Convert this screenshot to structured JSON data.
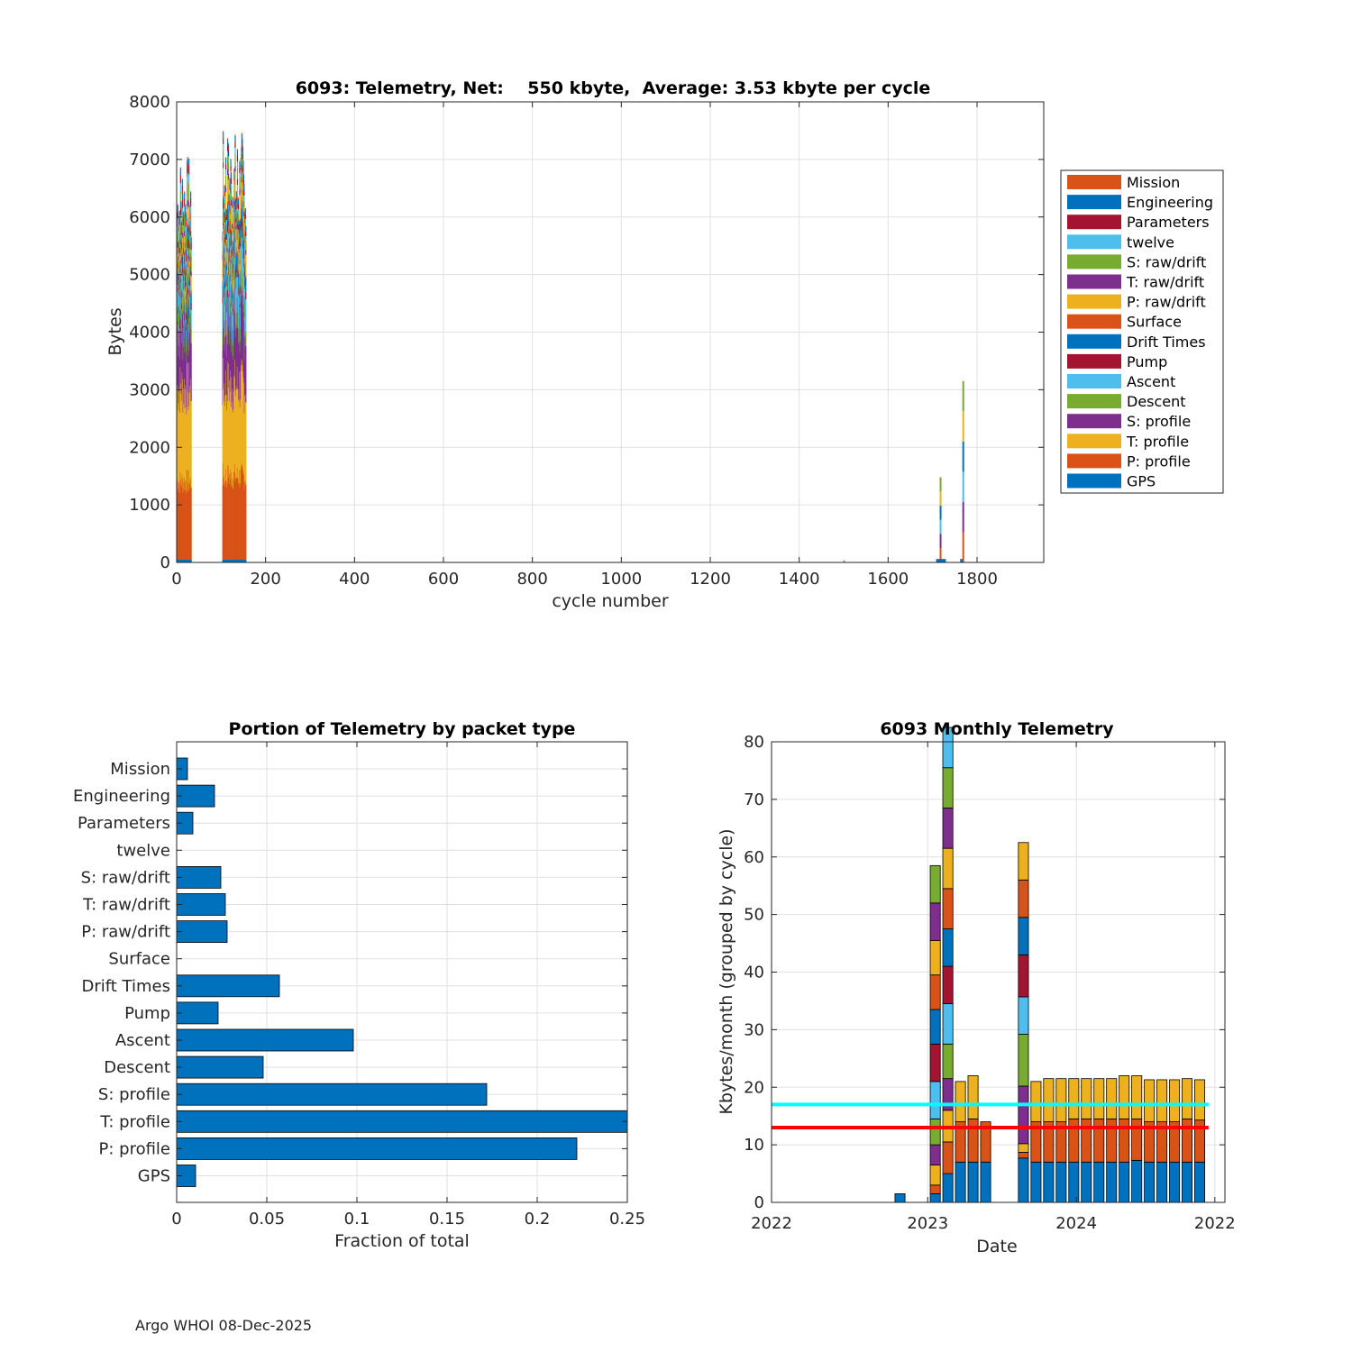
{
  "colors": {
    "mission": "#D95319",
    "engineering": "#0072BD",
    "parameters": "#A2142F",
    "twelve": "#4DBEEE",
    "s_raw": "#77AC30",
    "t_raw": "#7E2F8E",
    "p_raw": "#EDB120",
    "bar_blue": "#0072BD",
    "grid": "#e0e0e0",
    "avg_line": "#ff0000",
    "cyan_line": "#00ffff"
  },
  "footer_text": "Argo WHOI 08-Dec-2025",
  "chart_data": [
    {
      "id": "telemetry_by_cycle",
      "type": "bar",
      "stacked": true,
      "title": "6093: Telemetry, Net:    550 kbyte,  Average: 3.53 kbyte per cycle",
      "xlabel": "cycle number",
      "ylabel": "Bytes",
      "xlim": [
        0,
        1950
      ],
      "ylim": [
        0,
        8000
      ],
      "xticks": [
        0,
        200,
        400,
        600,
        800,
        1000,
        1200,
        1400,
        1600,
        1800
      ],
      "yticks": [
        0,
        1000,
        2000,
        3000,
        4000,
        5000,
        6000,
        7000,
        8000
      ],
      "grid": true,
      "legend_position": "outside-right",
      "legend": [
        "Mission",
        "Engineering",
        "Parameters",
        "twelve",
        "S: raw/drift",
        "T: raw/drift",
        "P: raw/drift",
        "Surface",
        "Drift Times",
        "Pump",
        "Ascent",
        "Descent",
        "S: profile",
        "T: profile",
        "P: profile",
        "GPS"
      ],
      "legend_colors": [
        "#D95319",
        "#0072BD",
        "#A2142F",
        "#4DBEEE",
        "#77AC30",
        "#7E2F8E",
        "#EDB120",
        "#D95319",
        "#0072BD",
        "#A2142F",
        "#4DBEEE",
        "#77AC30",
        "#7E2F8E",
        "#EDB120",
        "#D95319",
        "#0072BD"
      ],
      "bottom_to_top_colors": [
        "#0072BD",
        "#D95319",
        "#EDB120",
        "#7E2F8E",
        "#77AC30",
        "#4DBEEE",
        "#A2142F",
        "#0072BD",
        "#D95319",
        "#EDB120",
        "#7E2F8E",
        "#77AC30",
        "#4DBEEE",
        "#A2142F",
        "#0072BD",
        "#D95319"
      ],
      "groups": [
        {
          "name": "early cycles",
          "start": 1,
          "end": 32,
          "layers": [
            50,
            1500,
            1800,
            1200,
            300,
            400,
            150,
            200,
            50,
            300,
            100,
            300,
            150,
            150,
            100,
            20
          ]
        },
        {
          "name": "mid cycles",
          "start": 103,
          "end": 155,
          "layers": [
            50,
            1600,
            1750,
            1200,
            300,
            700,
            150,
            300,
            50,
            450,
            100,
            200,
            100,
            100,
            100,
            20
          ]
        }
      ],
      "spikes": [
        {
          "x": 1501,
          "total": 40
        },
        {
          "x": 1718,
          "total": 1480
        },
        {
          "x": 1769,
          "total": 3150
        }
      ]
    },
    {
      "id": "portion_by_packet_type",
      "type": "bar",
      "orientation": "horizontal",
      "title": "Portion of Telemetry by packet type",
      "xlabel": "Fraction of total",
      "ylabel": "",
      "xlim": [
        0,
        0.25
      ],
      "xticks": [
        0,
        0.05,
        0.1,
        0.15,
        0.2,
        0.25
      ],
      "xtick_labels": [
        "0",
        "0.05",
        "0.1",
        "0.15",
        "0.2",
        "0.25"
      ],
      "grid": true,
      "categories": [
        "Mission",
        "Engineering",
        "Parameters",
        "twelve",
        "S: raw/drift",
        "T: raw/drift",
        "P: raw/drift",
        "Surface",
        "Drift Times",
        "Pump",
        "Ascent",
        "Descent",
        "S: profile",
        "T: profile",
        "P: profile",
        "GPS"
      ],
      "values": [
        0.006,
        0.021,
        0.009,
        0,
        0.0245,
        0.027,
        0.028,
        0,
        0.057,
        0.023,
        0.098,
        0.048,
        0.172,
        0.26,
        0.222,
        0.0105
      ]
    },
    {
      "id": "monthly_telemetry",
      "type": "bar",
      "stacked": true,
      "title": "6093 Monthly Telemetry",
      "xlabel": "Date",
      "ylabel": "Kbytes/month (grouped by cycle)",
      "ylim": [
        0,
        80
      ],
      "yticks": [
        0,
        10,
        20,
        30,
        40,
        50,
        60,
        70,
        80
      ],
      "xtick_labels": [
        "2022",
        "2023",
        "2024",
        "2022"
      ],
      "grid": true,
      "reference_lines": [
        {
          "name": "cyan",
          "value": 17,
          "color": "#00ffff"
        },
        {
          "name": "red",
          "value": 13,
          "color": "#ff0000"
        }
      ],
      "layer_colors": [
        "#0072BD",
        "#D95319",
        "#EDB120",
        "#7E2F8E",
        "#77AC30",
        "#4DBEEE",
        "#A2142F",
        "#0072BD",
        "#D95319",
        "#EDB120",
        "#7E2F8E",
        "#77AC30",
        "#4DBEEE",
        "#A2142F",
        "#0072BD"
      ],
      "months": [
        {
          "m": 10.2,
          "layers": [
            1.5
          ]
        },
        {
          "m": 13.0,
          "layers": [
            1.5,
            1.5,
            3.5,
            3.5,
            4.5,
            6.5,
            6.5,
            6,
            6,
            6,
            6.5,
            6.5
          ]
        },
        {
          "m": 14.0,
          "layers": [
            5,
            5.5,
            5.5,
            5.5,
            6,
            7,
            6.5,
            6.5,
            7,
            7,
            7,
            7,
            7
          ]
        },
        {
          "m": 15.0,
          "layers": [
            7,
            7,
            7
          ]
        },
        {
          "m": 16.0,
          "layers": [
            7,
            7.5,
            7.5
          ]
        },
        {
          "m": 17.0,
          "layers": [
            7,
            7
          ]
        },
        {
          "m": 20.0,
          "layers": [
            7.7,
            1,
            1.5,
            10,
            9,
            6.5,
            7.3,
            6.5,
            6.5,
            6.5
          ]
        },
        {
          "m": 21.0,
          "layers": [
            7,
            7,
            7
          ]
        },
        {
          "m": 22.0,
          "layers": [
            7,
            7,
            7.5
          ]
        },
        {
          "m": 23.0,
          "layers": [
            7,
            7,
            7.5
          ]
        },
        {
          "m": 24.0,
          "layers": [
            7,
            7.5,
            7
          ]
        },
        {
          "m": 25.0,
          "layers": [
            7,
            7.5,
            7
          ]
        },
        {
          "m": 26.0,
          "layers": [
            7,
            7.5,
            7
          ]
        },
        {
          "m": 27.0,
          "layers": [
            7,
            7.5,
            7
          ]
        },
        {
          "m": 28.0,
          "layers": [
            7,
            7.5,
            7.5
          ]
        },
        {
          "m": 29.0,
          "layers": [
            7.3,
            7.2,
            7.5
          ]
        },
        {
          "m": 30.0,
          "layers": [
            7,
            7,
            7.3
          ]
        },
        {
          "m": 31.0,
          "layers": [
            7,
            7,
            7.3
          ]
        },
        {
          "m": 32.0,
          "layers": [
            7,
            7,
            7.3
          ]
        },
        {
          "m": 33.0,
          "layers": [
            7,
            7.5,
            7
          ]
        },
        {
          "m": 34.0,
          "layers": [
            7,
            7.3,
            7
          ]
        }
      ]
    }
  ]
}
